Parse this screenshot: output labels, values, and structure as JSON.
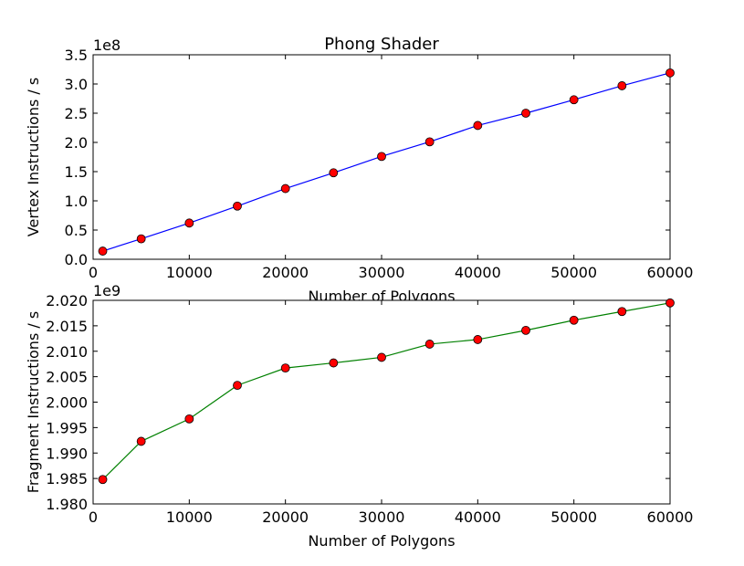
{
  "chart_data": [
    {
      "type": "line",
      "title": "Phong Shader",
      "xlabel": "Number of Polygons",
      "ylabel": "Vertex Instructions / s",
      "y_offset_label": "1e8",
      "xlim": [
        0,
        60000
      ],
      "ylim": [
        0.0,
        3.5
      ],
      "xticks": [
        0,
        10000,
        20000,
        30000,
        40000,
        50000,
        60000
      ],
      "xtick_labels": [
        "0",
        "10000",
        "20000",
        "30000",
        "40000",
        "50000",
        "60000"
      ],
      "yticks": [
        0.0,
        0.5,
        1.0,
        1.5,
        2.0,
        2.5,
        3.0,
        3.5
      ],
      "ytick_labels": [
        "0.0",
        "0.5",
        "1.0",
        "1.5",
        "2.0",
        "2.5",
        "3.0",
        "3.5"
      ],
      "grid": false,
      "line_color": "#0000ff",
      "marker_color": "#ff0000",
      "x": [
        1000,
        5000,
        10000,
        15000,
        20000,
        25000,
        30000,
        35000,
        40000,
        45000,
        50000,
        55000,
        60000
      ],
      "values": [
        0.14,
        0.35,
        0.62,
        0.91,
        1.21,
        1.48,
        1.76,
        2.01,
        2.29,
        2.5,
        2.73,
        2.97,
        3.19
      ]
    },
    {
      "type": "line",
      "title": "",
      "xlabel": "Number of Polygons",
      "ylabel": "Fragment Instructions / s",
      "y_offset_label": "1e9",
      "xlim": [
        0,
        60000
      ],
      "ylim": [
        1.98,
        2.02
      ],
      "xticks": [
        0,
        10000,
        20000,
        30000,
        40000,
        50000,
        60000
      ],
      "xtick_labels": [
        "0",
        "10000",
        "20000",
        "30000",
        "40000",
        "50000",
        "60000"
      ],
      "yticks": [
        1.98,
        1.985,
        1.99,
        1.995,
        2.0,
        2.005,
        2.01,
        2.015,
        2.02
      ],
      "ytick_labels": [
        "1.980",
        "1.985",
        "1.990",
        "1.995",
        "2.000",
        "2.005",
        "2.010",
        "2.015",
        "2.020"
      ],
      "grid": false,
      "line_color": "#008000",
      "marker_color": "#ff0000",
      "x": [
        1000,
        5000,
        10000,
        15000,
        20000,
        25000,
        30000,
        35000,
        40000,
        45000,
        50000,
        55000,
        60000
      ],
      "values": [
        1.9848,
        1.9923,
        1.9967,
        2.0033,
        2.0067,
        2.0077,
        2.0088,
        2.0114,
        2.0123,
        2.0141,
        2.0161,
        2.0178,
        2.0195
      ]
    }
  ]
}
